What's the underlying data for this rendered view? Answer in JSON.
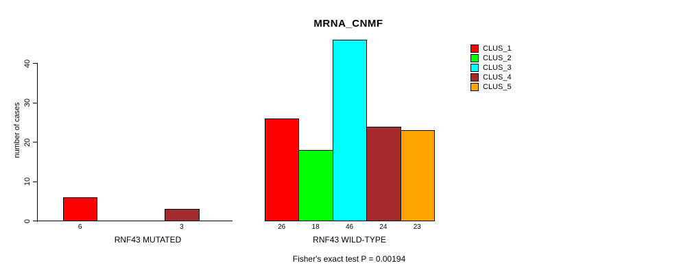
{
  "chart_data": {
    "type": "bar",
    "title": "MRNA_CNMF",
    "ylabel": "number of cases",
    "yticks": [
      0,
      10,
      20,
      30,
      40
    ],
    "ylim": [
      0,
      46
    ],
    "grid": false,
    "legend_position": "top-right",
    "clusters": [
      {
        "label": "CLUS_1",
        "color": "#FF0000"
      },
      {
        "label": "CLUS_2",
        "color": "#00FF00"
      },
      {
        "label": "CLUS_3",
        "color": "#00FFFF"
      },
      {
        "label": "CLUS_4",
        "color": "#A52A2A"
      },
      {
        "label": "CLUS_5",
        "color": "#FFA500"
      }
    ],
    "groups": [
      {
        "label": "RNF43 MUTATED",
        "values": [
          6,
          null,
          null,
          3,
          null
        ]
      },
      {
        "label": "RNF43 WILD-TYPE",
        "values": [
          26,
          18,
          46,
          24,
          23
        ]
      }
    ],
    "annotation": "Fisher's exact test P = 0.00194"
  },
  "colors": {
    "background": "#FFFFFF",
    "axis": "#000000",
    "text": "#000000"
  }
}
